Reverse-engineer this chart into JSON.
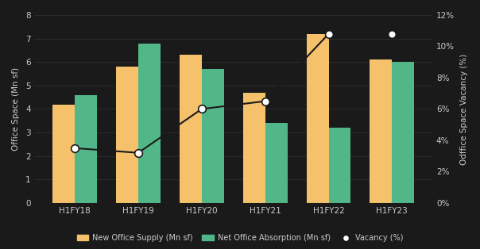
{
  "categories": [
    "H1FY18",
    "H1FY19",
    "H1FY20",
    "H1FY21",
    "H1FY22",
    "H1FY23"
  ],
  "new_office_supply": [
    4.2,
    5.8,
    6.3,
    4.7,
    7.2,
    6.1
  ],
  "net_office_absorption": [
    4.6,
    6.8,
    5.7,
    3.4,
    3.2,
    6.0
  ],
  "vacancy": [
    3.5,
    3.2,
    6.0,
    6.5,
    10.8,
    10.8
  ],
  "bar_color_supply": "#F5C26B",
  "bar_color_absorption": "#52B788",
  "line_color": "#1a1a1a",
  "marker_color": "#ffffff",
  "marker_edge_color": "#1a1a1a",
  "ylabel_left": "Office Space (Mn sf)",
  "ylabel_right": "Odffice Space Vacancy (%)",
  "ylim_left": [
    0,
    8
  ],
  "ylim_right": [
    0,
    12
  ],
  "yticks_left": [
    0,
    1,
    2,
    3,
    4,
    5,
    6,
    7,
    8
  ],
  "yticks_right": [
    0,
    2,
    4,
    6,
    8,
    10,
    12
  ],
  "ytick_labels_right": [
    "0%",
    "2%",
    "4%",
    "6%",
    "8%",
    "10%",
    "12%"
  ],
  "legend_supply": "New Office Supply (Mn sf)",
  "legend_absorption": "Net Office Absorption (Mn sf)",
  "legend_vacancy": "Vacancy (%)",
  "bar_width": 0.35,
  "background_color": "#1a1a1a",
  "plot_bg_color": "#1a1a1a",
  "spine_color": "#555555",
  "grid_color": "#333333",
  "font_color": "#cccccc",
  "tick_color": "#cccccc"
}
